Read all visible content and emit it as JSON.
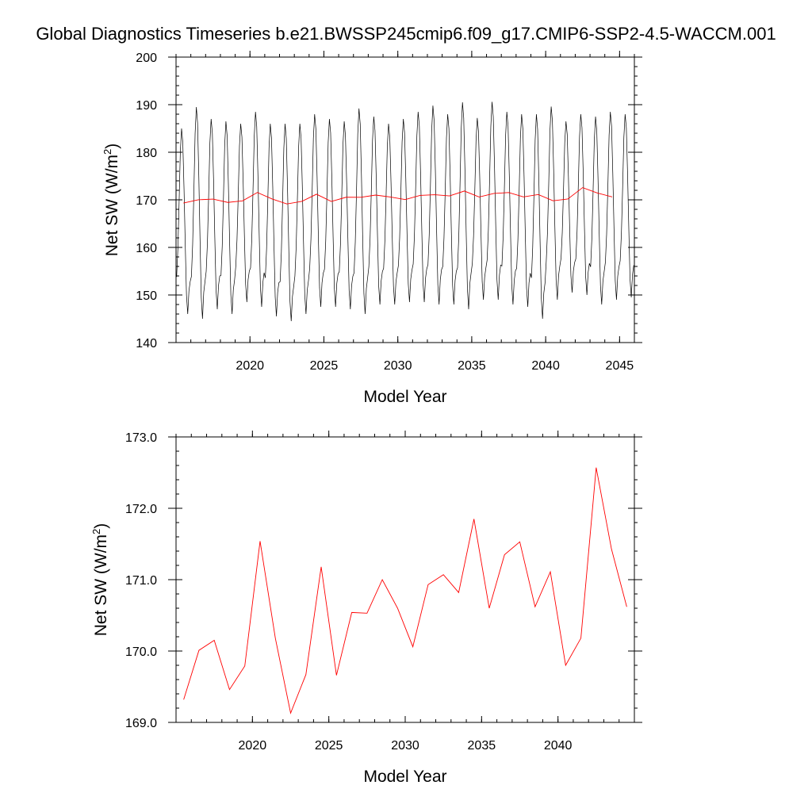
{
  "title": "Global Diagnostics Timeseries b.e21.BWSSP245cmip6.f09_g17.CMIP6-SSP2-4.5-WACCM.001",
  "colors": {
    "monthly_line": "#000000",
    "annual_line": "#ff0000",
    "axes": "#000000"
  },
  "chart_data": [
    {
      "type": "line",
      "xlabel": "Model Year",
      "ylabel": "Net SW (W/m",
      "ylabel_sup": "2",
      "ylabel_suffix": ")",
      "xlim": [
        2015.0,
        2046.0
      ],
      "ylim": [
        140,
        200
      ],
      "x_ticks": [
        2020,
        2025,
        2030,
        2035,
        2040,
        2045
      ],
      "x_tick_labels": [
        "2020",
        "2025",
        "2030",
        "2035",
        "2040",
        "2045"
      ],
      "y_ticks": [
        140,
        150,
        160,
        170,
        180,
        190,
        200
      ],
      "y_tick_labels": [
        "140",
        "150",
        "160",
        "170",
        "180",
        "190",
        "200"
      ],
      "grid": false,
      "series": [
        {
          "kind": "monthly",
          "start_year": 2015,
          "peaks": [
            185.0,
            189.5,
            187.0,
            186.5,
            186.0,
            188.5,
            186.0,
            186.0,
            186.0,
            188.0,
            187.0,
            186.5,
            189.2,
            187.5,
            186.0,
            187.0,
            188.5,
            189.8,
            188.0,
            190.5,
            187.2,
            190.6,
            188.5,
            188.0,
            188.0,
            189.6,
            186.5,
            188.0,
            187.5,
            188.5,
            188.0
          ],
          "troughs": [
            146.0,
            145.0,
            147.0,
            146.0,
            148.5,
            147.5,
            145.5,
            144.5,
            146.0,
            147.5,
            147.5,
            147.0,
            146.0,
            148.0,
            148.0,
            148.5,
            148.5,
            148.0,
            148.0,
            147.0,
            149.0,
            149.0,
            148.0,
            147.5,
            145.0,
            149.0,
            150.5,
            150.0,
            148.0,
            149.0,
            149.5
          ]
        },
        {
          "kind": "annual",
          "x": [
            2015.5,
            2016.5,
            2017.5,
            2018.5,
            2019.5,
            2020.5,
            2021.5,
            2022.5,
            2023.5,
            2024.5,
            2025.5,
            2026.5,
            2027.5,
            2028.5,
            2029.5,
            2030.5,
            2031.5,
            2032.5,
            2033.5,
            2034.5,
            2035.5,
            2036.5,
            2037.5,
            2038.5,
            2039.5,
            2040.5,
            2041.5,
            2042.5,
            2043.5,
            2044.5
          ],
          "y": [
            169.32,
            170.01,
            170.15,
            169.46,
            169.79,
            171.54,
            170.18,
            169.13,
            169.67,
            171.18,
            169.66,
            170.54,
            170.53,
            171.0,
            170.6,
            170.06,
            170.93,
            171.07,
            170.82,
            171.85,
            170.6,
            171.35,
            171.53,
            170.62,
            171.11,
            169.8,
            170.18,
            172.57,
            171.43,
            170.62
          ]
        }
      ]
    },
    {
      "type": "line",
      "xlabel": "Model Year",
      "ylabel": "Net SW (W/m",
      "ylabel_sup": "2",
      "ylabel_suffix": ")",
      "xlim": [
        2015.0,
        2045.0
      ],
      "ylim": [
        169.0,
        173.0
      ],
      "x_ticks": [
        2020,
        2025,
        2030,
        2035,
        2040
      ],
      "x_tick_labels": [
        "2020",
        "2025",
        "2030",
        "2035",
        "2040"
      ],
      "y_ticks": [
        169.0,
        170.0,
        171.0,
        172.0,
        173.0
      ],
      "y_tick_labels": [
        "169.0",
        "170.0",
        "171.0",
        "172.0",
        "173.0"
      ],
      "grid": false,
      "series": [
        {
          "kind": "annual",
          "x": [
            2015.5,
            2016.5,
            2017.5,
            2018.5,
            2019.5,
            2020.5,
            2021.5,
            2022.5,
            2023.5,
            2024.5,
            2025.5,
            2026.5,
            2027.5,
            2028.5,
            2029.5,
            2030.5,
            2031.5,
            2032.5,
            2033.5,
            2034.5,
            2035.5,
            2036.5,
            2037.5,
            2038.5,
            2039.5,
            2040.5,
            2041.5,
            2042.5,
            2043.5,
            2044.5
          ],
          "y": [
            169.32,
            170.01,
            170.15,
            169.46,
            169.79,
            171.54,
            170.18,
            169.13,
            169.67,
            171.18,
            169.66,
            170.54,
            170.53,
            171.0,
            170.6,
            170.06,
            170.93,
            171.07,
            170.82,
            171.85,
            170.6,
            171.35,
            171.53,
            170.62,
            171.11,
            169.8,
            170.18,
            172.57,
            171.43,
            170.62
          ]
        }
      ]
    }
  ]
}
